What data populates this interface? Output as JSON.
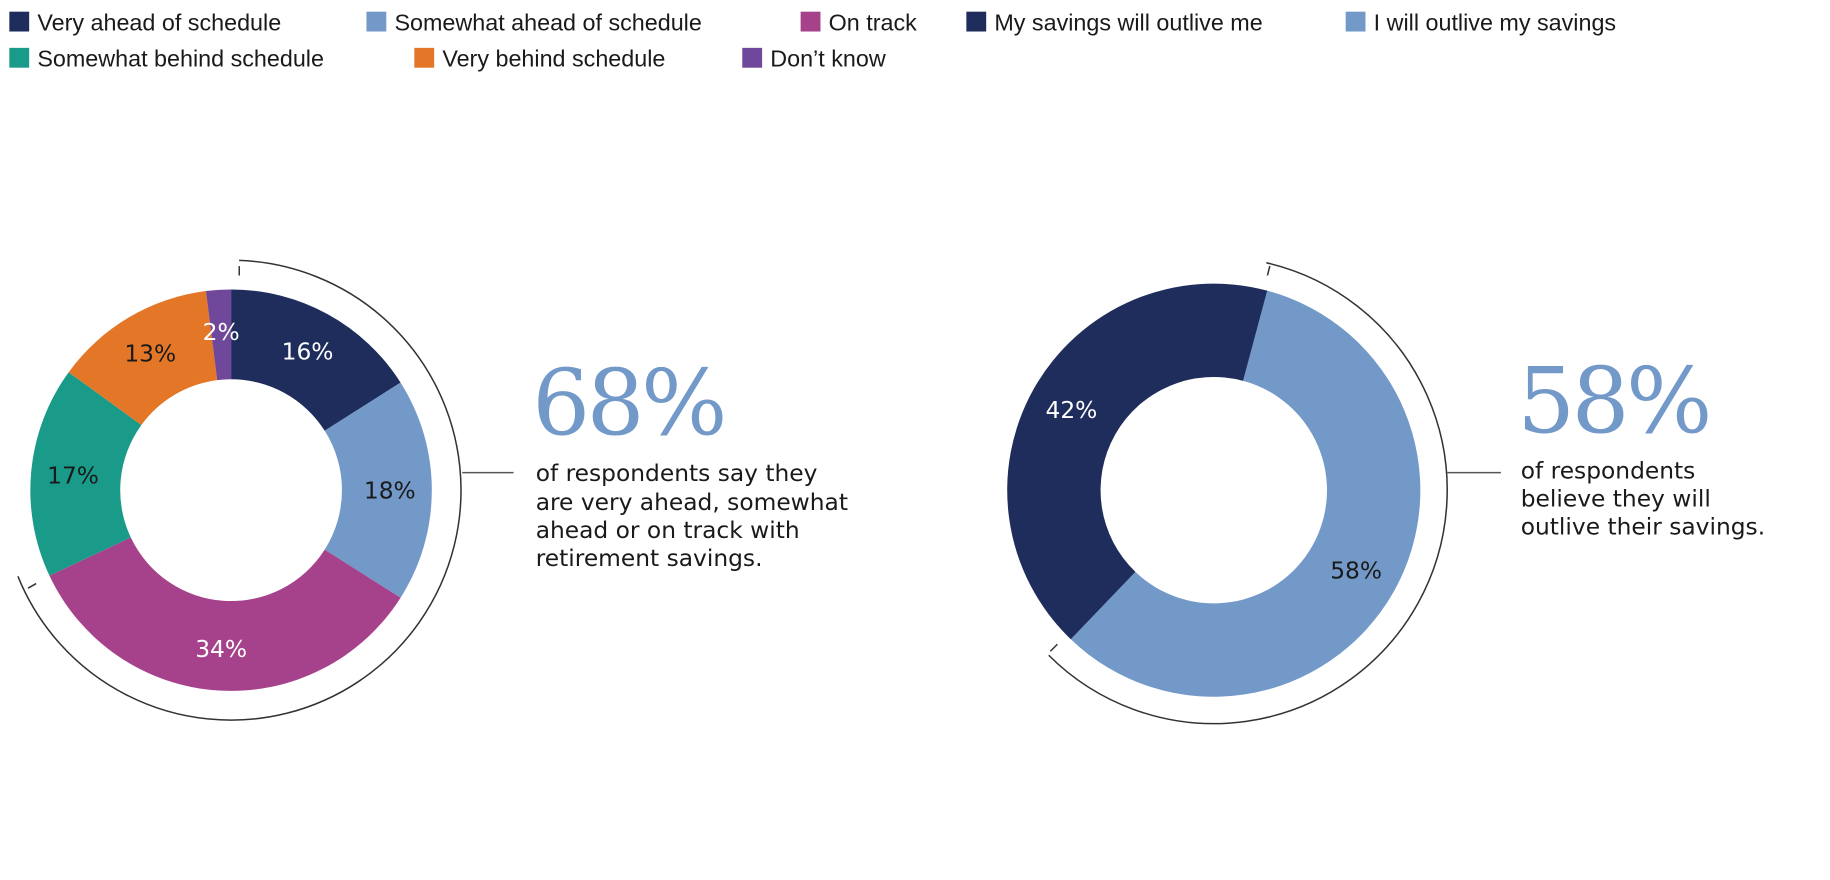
{
  "legend": [
    {
      "label": "Very ahead of schedule",
      "color": "#1f2d5c"
    },
    {
      "label": "Somewhat ahead of schedule",
      "color": "#7399c9"
    },
    {
      "label": "On track",
      "color": "#a6428b"
    },
    {
      "label": "My savings will outlive me",
      "color": "#1f2d5c"
    },
    {
      "label": "I will outlive my savings",
      "color": "#7399c9"
    },
    {
      "label": "Somewhat behind schedule",
      "color": "#1a9b8a"
    },
    {
      "label": "Very behind schedule",
      "color": "#e37727"
    },
    {
      "label": "Don’t know",
      "color": "#6f479b"
    }
  ],
  "chart_data": [
    {
      "type": "pie",
      "donut": true,
      "categories": [
        "Very ahead of schedule",
        "Somewhat ahead of schedule",
        "On track",
        "Somewhat behind schedule",
        "Very behind schedule",
        "Don’t know"
      ],
      "values": [
        16,
        18,
        34,
        17,
        13,
        2
      ],
      "labels": [
        "16%",
        "18%",
        "34%",
        "17%",
        "13%",
        "2%"
      ],
      "colors": [
        "#1f2d5c",
        "#7399c9",
        "#a6428b",
        "#1a9b8a",
        "#e37727",
        "#6f479b"
      ],
      "label_colors": [
        "#ffffff",
        "#1a1a1a",
        "#ffffff",
        "#1a1a1a",
        "#1a1a1a",
        "#ffffff"
      ],
      "start_angle_deg": 0,
      "callout": {
        "value": "68%",
        "lines": [
          "of respondents say they",
          "are very ahead, somewhat",
          "ahead or on track with",
          "retirement savings."
        ]
      }
    },
    {
      "type": "pie",
      "donut": true,
      "categories": [
        "I will outlive my savings",
        "My savings will outlive me"
      ],
      "values": [
        58,
        42
      ],
      "labels": [
        "58%",
        "42%"
      ],
      "colors": [
        "#7399c9",
        "#1f2d5c"
      ],
      "label_colors": [
        "#1a1a1a",
        "#ffffff"
      ],
      "start_angle_deg": 15,
      "callout": {
        "value": "58%",
        "lines": [
          "of respondents",
          "believe they will",
          "outlive their savings."
        ]
      }
    }
  ]
}
